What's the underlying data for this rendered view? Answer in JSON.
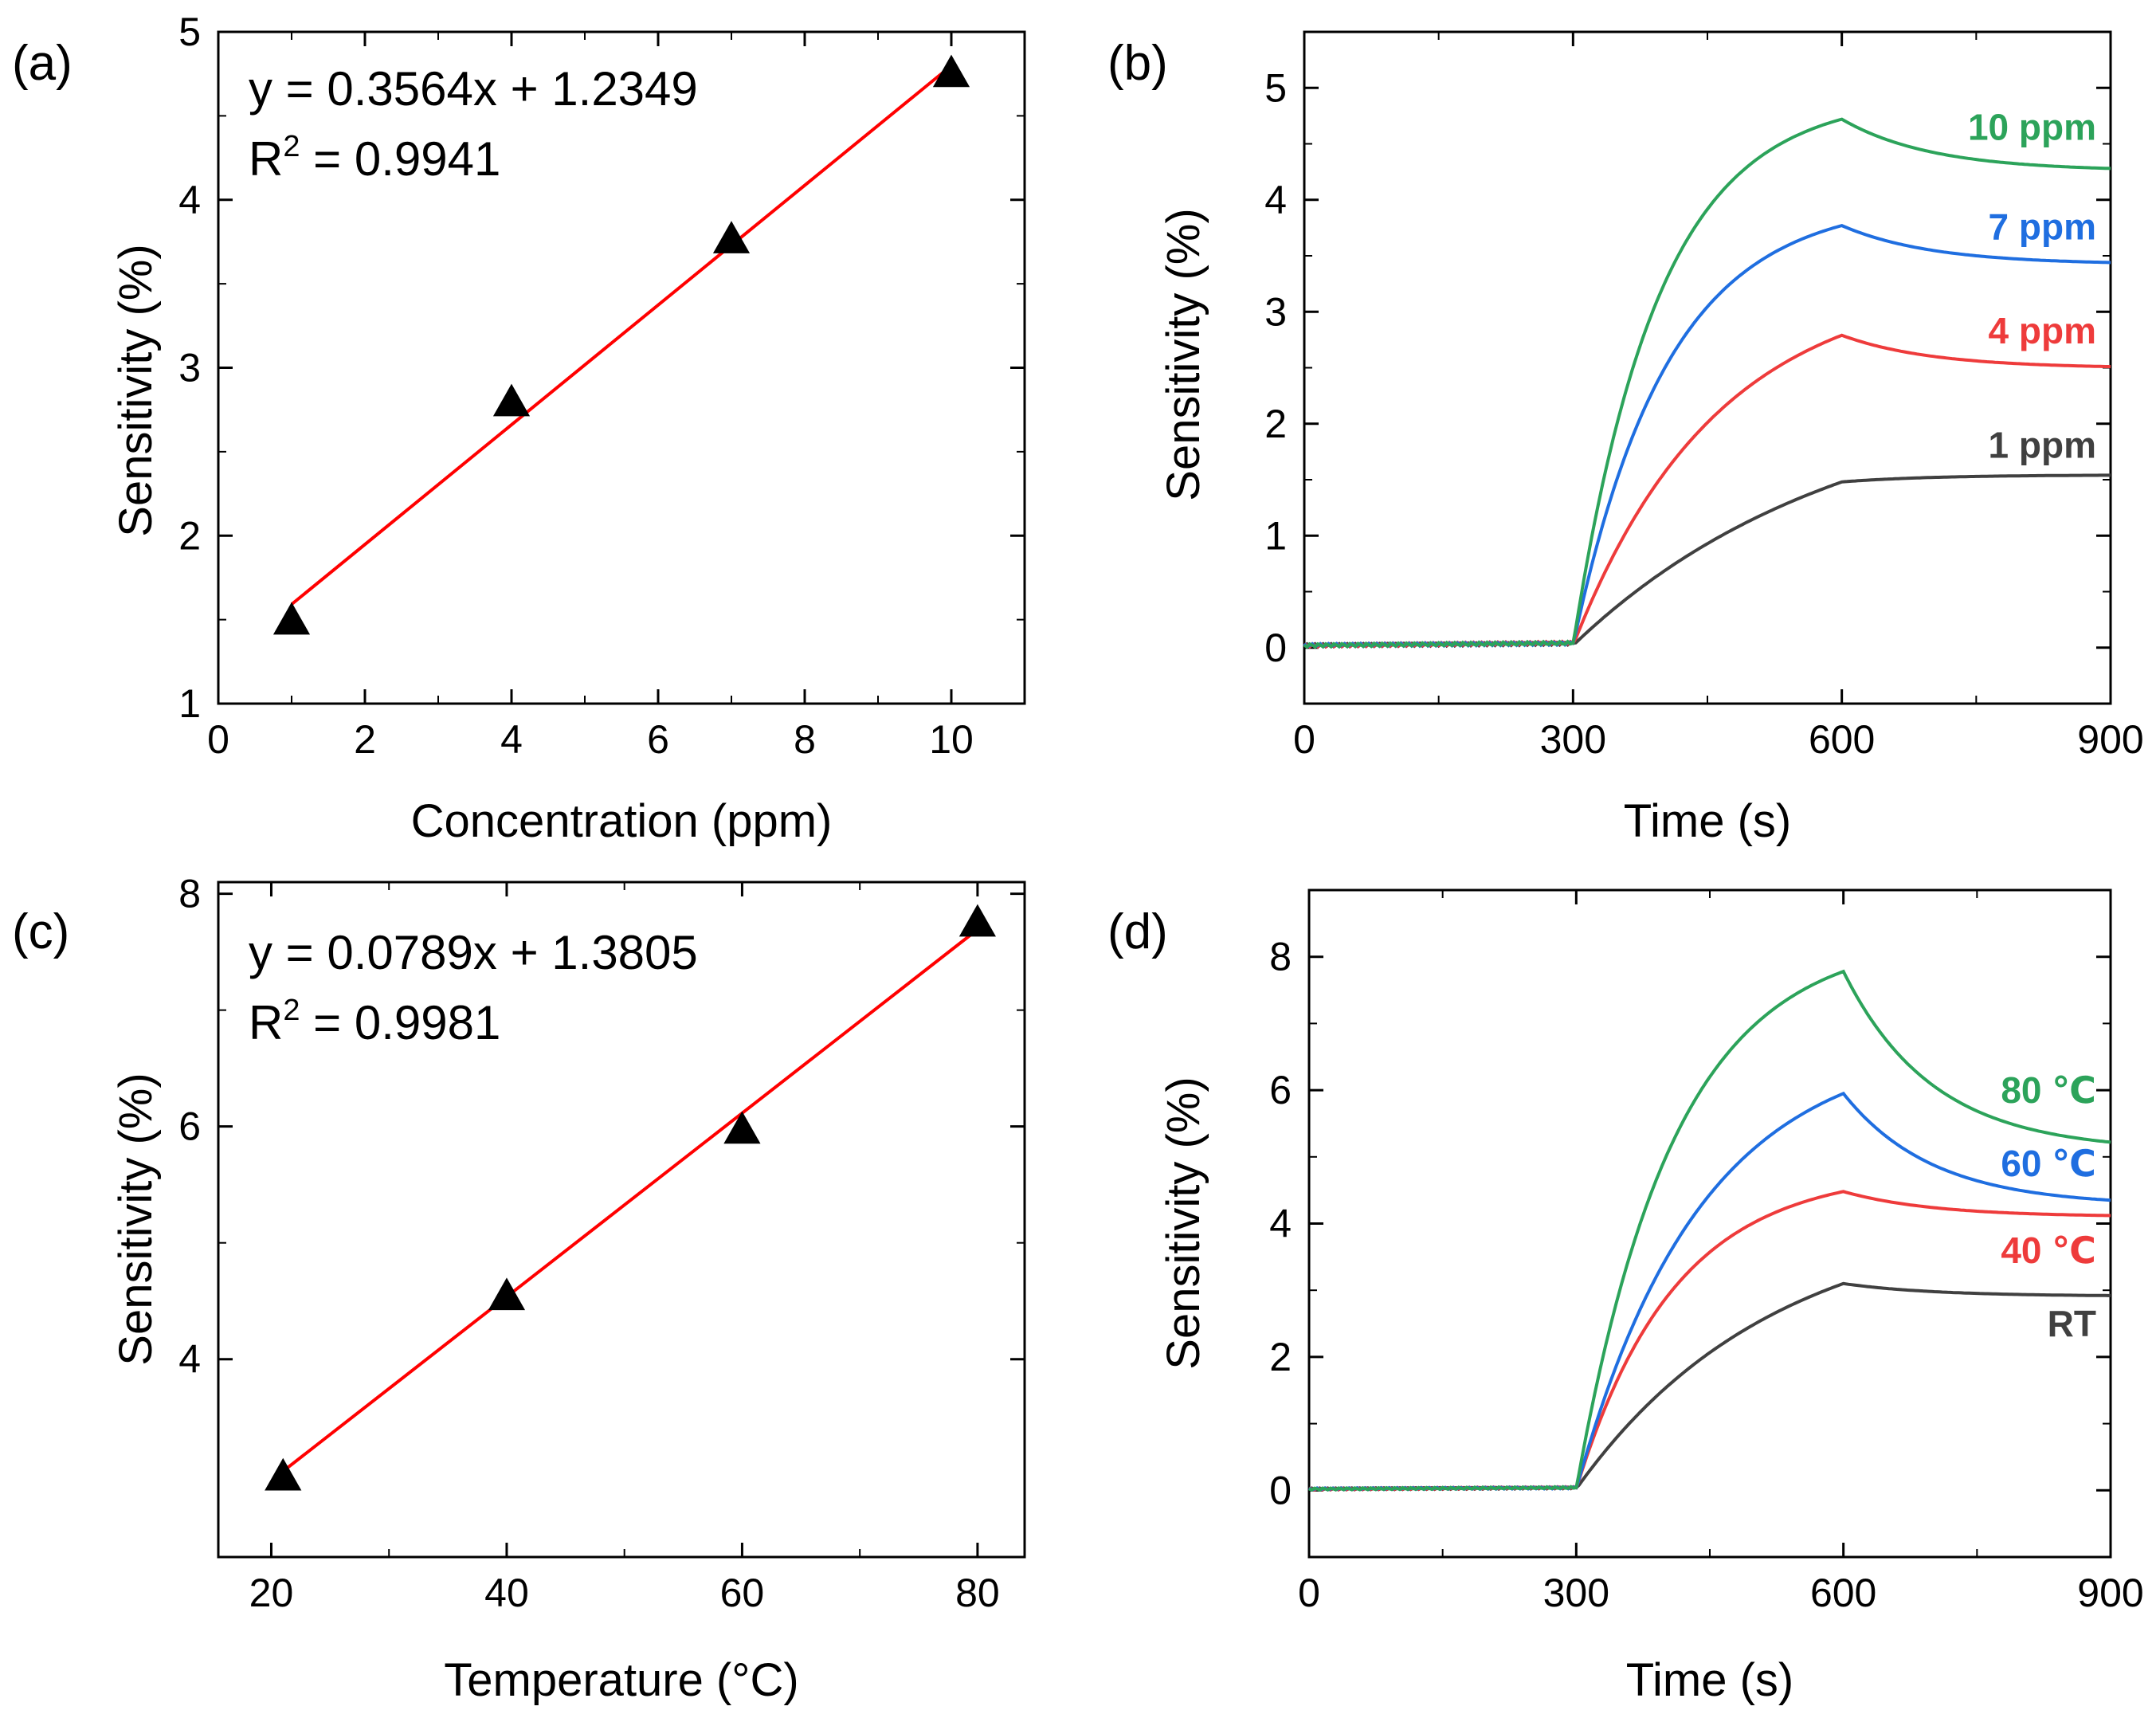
{
  "chart_data": [
    {
      "id": "a",
      "panel_label": "(a)",
      "type": "scatter",
      "xlabel": "Concentration (ppm)",
      "ylabel": "Sensitivity (%)",
      "xlim": [
        0,
        11
      ],
      "ylim": [
        1,
        5
      ],
      "xticks": [
        0,
        2,
        4,
        6,
        8,
        10
      ],
      "yticks": [
        1,
        2,
        3,
        4,
        5
      ],
      "x": [
        1,
        4,
        7,
        10
      ],
      "y": [
        1.5,
        2.8,
        3.77,
        4.76
      ],
      "marker": "triangle",
      "marker_color": "#000000",
      "fit": {
        "slope": 0.3564,
        "intercept": 1.2349,
        "x_range": [
          1,
          10
        ],
        "color": "#ff0000"
      },
      "equation": "y = 0.3564x + 1.2349",
      "r2_label": "R",
      "r2_sup": "2",
      "r2_value": " = 0.9941"
    },
    {
      "id": "b",
      "panel_label": "(b)",
      "type": "line",
      "xlabel": "Time (s)",
      "ylabel": "Sensitivity (%)",
      "xlim": [
        0,
        900
      ],
      "ylim": [
        -0.5,
        5.5
      ],
      "xticks": [
        0,
        300,
        600,
        900
      ],
      "yticks": [
        0,
        1,
        2,
        3,
        4,
        5
      ],
      "series": [
        {
          "name": "1 ppm",
          "color": "#404040",
          "tau": 300,
          "peak": 1.48,
          "tail_end": 1.54,
          "label_y": 1.81
        },
        {
          "name": "4 ppm",
          "color": "#ee3b3b",
          "tau": 160,
          "peak": 2.79,
          "tail_end": 2.51,
          "label_y": 2.83
        },
        {
          "name": "7 ppm",
          "color": "#1f6ee0",
          "tau": 105,
          "peak": 3.77,
          "tail_end": 3.44,
          "label_y": 3.76
        },
        {
          "name": "10 ppm",
          "color": "#2ca35a",
          "tau": 95,
          "peak": 4.72,
          "tail_end": 4.28,
          "label_y": 4.65
        }
      ]
    },
    {
      "id": "c",
      "panel_label": "(c)",
      "type": "scatter",
      "xlabel": "Temperature (°C)",
      "ylabel": "Sensitivity (%)",
      "xlim": [
        15.5,
        84
      ],
      "ylim": [
        2.3,
        8.1
      ],
      "xticks": [
        20,
        40,
        60,
        80
      ],
      "yticks": [
        4,
        6,
        8
      ],
      "x": [
        21,
        40,
        60,
        80
      ],
      "y": [
        3.0,
        4.55,
        5.98,
        7.76
      ],
      "marker": "triangle",
      "marker_color": "#000000",
      "fit": {
        "slope": 0.0789,
        "intercept": 1.3805,
        "x_range": [
          21,
          80
        ],
        "color": "#ff0000"
      },
      "equation": "y = 0.0789x + 1.3805",
      "r2_label": "R",
      "r2_sup": "2",
      "r2_value": " = 0.9981"
    },
    {
      "id": "d",
      "panel_label": "(d)",
      "type": "line",
      "xlabel": "Time (s)",
      "ylabel": "Sensitivity (%)",
      "xlim": [
        0,
        900
      ],
      "ylim": [
        -1,
        9
      ],
      "xticks": [
        0,
        300,
        600,
        900
      ],
      "yticks": [
        0,
        2,
        4,
        6,
        8
      ],
      "series": [
        {
          "name": "RT",
          "color": "#404040",
          "tau": 220,
          "peak": 3.1,
          "tail_end": 2.92,
          "label_y": 2.5
        },
        {
          "name": "40 ℃",
          "color": "#ee3b3b",
          "tau": 110,
          "peak": 4.48,
          "tail_end": 4.12,
          "label_y": 3.6
        },
        {
          "name": "60 ℃",
          "color": "#1f6ee0",
          "tau": 140,
          "peak": 5.95,
          "tail_end": 4.35,
          "label_y": 4.9
        },
        {
          "name": "80 ℃",
          "color": "#2ca35a",
          "tau": 110,
          "peak": 7.78,
          "tail_end": 5.22,
          "label_y": 6.0
        }
      ]
    }
  ]
}
